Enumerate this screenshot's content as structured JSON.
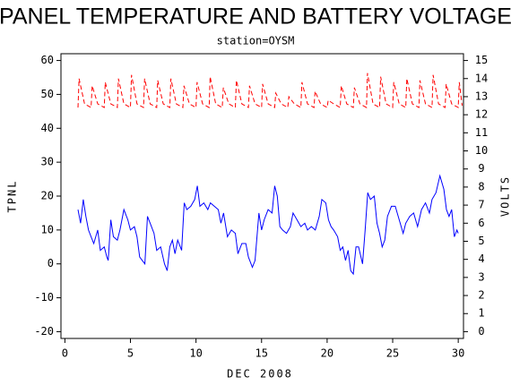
{
  "chart_data": {
    "type": "line",
    "title": "PANEL TEMPERATURE AND BATTERY VOLTAGE",
    "subtitle": "station=OYSM",
    "xlabel": "DEC 2008",
    "ylabel": "TPNL",
    "y2label": "VOLTS",
    "xlim": [
      -0.3,
      30.4
    ],
    "xticks": [
      0,
      5,
      10,
      15,
      20,
      25,
      30
    ],
    "ylim": [
      -22,
      62
    ],
    "yticks": [
      -20,
      -10,
      0,
      10,
      20,
      30,
      40,
      50,
      60
    ],
    "y2lim": [
      -0.375,
      15.375
    ],
    "y2ticks": [
      0,
      1,
      2,
      3,
      4,
      5,
      6,
      7,
      8,
      9,
      10,
      11,
      12,
      13,
      14,
      15
    ],
    "series": [
      {
        "name": "TPNL",
        "color": "#0000ff",
        "linestyle": "solid",
        "x": [
          1.0,
          1.2,
          1.4,
          1.6,
          1.8,
          2.0,
          2.2,
          2.5,
          2.7,
          3.0,
          3.2,
          3.3,
          3.5,
          3.7,
          4.0,
          4.2,
          4.5,
          4.8,
          5.0,
          5.3,
          5.5,
          5.7,
          5.9,
          6.1,
          6.3,
          6.5,
          6.8,
          7.0,
          7.3,
          7.6,
          7.8,
          8.0,
          8.2,
          8.4,
          8.6,
          8.9,
          9.1,
          9.3,
          9.6,
          9.9,
          10.1,
          10.3,
          10.6,
          10.9,
          11.1,
          11.4,
          11.7,
          11.9,
          12.1,
          12.4,
          12.7,
          13.0,
          13.2,
          13.5,
          13.8,
          14.0,
          14.3,
          14.5,
          14.8,
          15.0,
          15.2,
          15.5,
          15.8,
          16.0,
          16.2,
          16.4,
          16.6,
          16.9,
          17.2,
          17.4,
          17.7,
          18.0,
          18.3,
          18.5,
          18.8,
          19.1,
          19.4,
          19.6,
          19.9,
          20.1,
          20.3,
          20.5,
          20.8,
          21.0,
          21.2,
          21.4,
          21.6,
          21.8,
          22.0,
          22.2,
          22.4,
          22.7,
          22.9,
          23.1,
          23.3,
          23.6,
          23.8,
          24.0,
          24.2,
          24.4,
          24.6,
          24.9,
          25.2,
          25.5,
          25.8,
          26.0,
          26.3,
          26.6,
          26.9,
          27.2,
          27.5,
          27.8,
          28.0,
          28.3,
          28.6,
          28.9,
          29.1,
          29.3,
          29.5,
          29.7,
          29.9,
          30.0
        ],
        "values": [
          16,
          12,
          19,
          14,
          10,
          8,
          6,
          10,
          4,
          5,
          2,
          1,
          13,
          8,
          7,
          10,
          16,
          13,
          10,
          11,
          8,
          2,
          1,
          0,
          14,
          12,
          9,
          4,
          5,
          0,
          -2,
          5,
          7,
          3,
          7,
          4,
          18,
          16,
          17,
          19,
          23,
          17,
          18,
          16,
          18,
          17,
          16,
          12,
          15,
          8,
          10,
          9,
          3,
          6,
          6,
          2,
          -1,
          1,
          15,
          10,
          13,
          16,
          15,
          23,
          20,
          11,
          10,
          9,
          11,
          15,
          13,
          11,
          12,
          10,
          11,
          10,
          14,
          19,
          18,
          13,
          11,
          10,
          8,
          4,
          5,
          1,
          4,
          -2,
          -3,
          5,
          5,
          0,
          10,
          21,
          19,
          20,
          12,
          9,
          5,
          7,
          14,
          17,
          17,
          13,
          9,
          12,
          14,
          15,
          11,
          16,
          18,
          15,
          19,
          21,
          26,
          22,
          16,
          14,
          16,
          8,
          10,
          9
        ]
      },
      {
        "name": "VOLTS",
        "color": "#ff0000",
        "linestyle": "dashed",
        "axis": "y2",
        "x": [
          1,
          1.08,
          1.5,
          2,
          2.08,
          2.5,
          3,
          3.08,
          3.5,
          4,
          4.08,
          4.5,
          5,
          5.08,
          5.5,
          6,
          6.08,
          6.5,
          7,
          7.08,
          7.5,
          8,
          8.08,
          8.5,
          9,
          9.08,
          9.5,
          10,
          10.08,
          10.5,
          11,
          11.08,
          11.5,
          12,
          12.08,
          12.5,
          13,
          13.08,
          13.5,
          14,
          14.08,
          14.5,
          15,
          15.08,
          15.5,
          16,
          16.08,
          16.5,
          17,
          17.08,
          17.5,
          18,
          18.08,
          18.5,
          19,
          19.08,
          19.5,
          20,
          20.08,
          20.5,
          21,
          21.08,
          21.5,
          22,
          22.08,
          22.5,
          23,
          23.08,
          23.5,
          24,
          24.08,
          24.5,
          25,
          25.08,
          25.5,
          26,
          26.08,
          26.5,
          27,
          27.08,
          27.5,
          28,
          28.08,
          28.5,
          29,
          29.08,
          29.5,
          30,
          30.08,
          30.3
        ],
        "values": [
          12.4,
          14.0,
          12.6,
          12.4,
          13.6,
          12.6,
          12.4,
          13.8,
          12.6,
          12.4,
          14.0,
          12.6,
          12.4,
          14.2,
          12.6,
          12.4,
          14.0,
          12.6,
          12.4,
          13.9,
          12.6,
          12.4,
          14.0,
          12.6,
          12.4,
          13.6,
          12.6,
          12.4,
          13.8,
          12.6,
          12.4,
          14.1,
          12.6,
          12.4,
          13.5,
          12.6,
          12.4,
          13.9,
          12.6,
          12.4,
          13.6,
          12.6,
          12.4,
          13.7,
          12.6,
          12.4,
          13.2,
          12.6,
          12.4,
          13.0,
          12.6,
          12.4,
          13.8,
          12.6,
          12.4,
          13.3,
          12.6,
          12.4,
          12.8,
          12.6,
          12.4,
          13.6,
          12.6,
          12.4,
          13.5,
          12.6,
          12.4,
          14.3,
          12.6,
          12.4,
          14.1,
          12.6,
          12.4,
          13.8,
          12.6,
          12.4,
          14.0,
          12.6,
          12.4,
          13.9,
          12.6,
          12.4,
          14.2,
          12.6,
          12.4,
          13.7,
          12.6,
          12.4,
          13.8,
          12.5
        ]
      }
    ]
  }
}
